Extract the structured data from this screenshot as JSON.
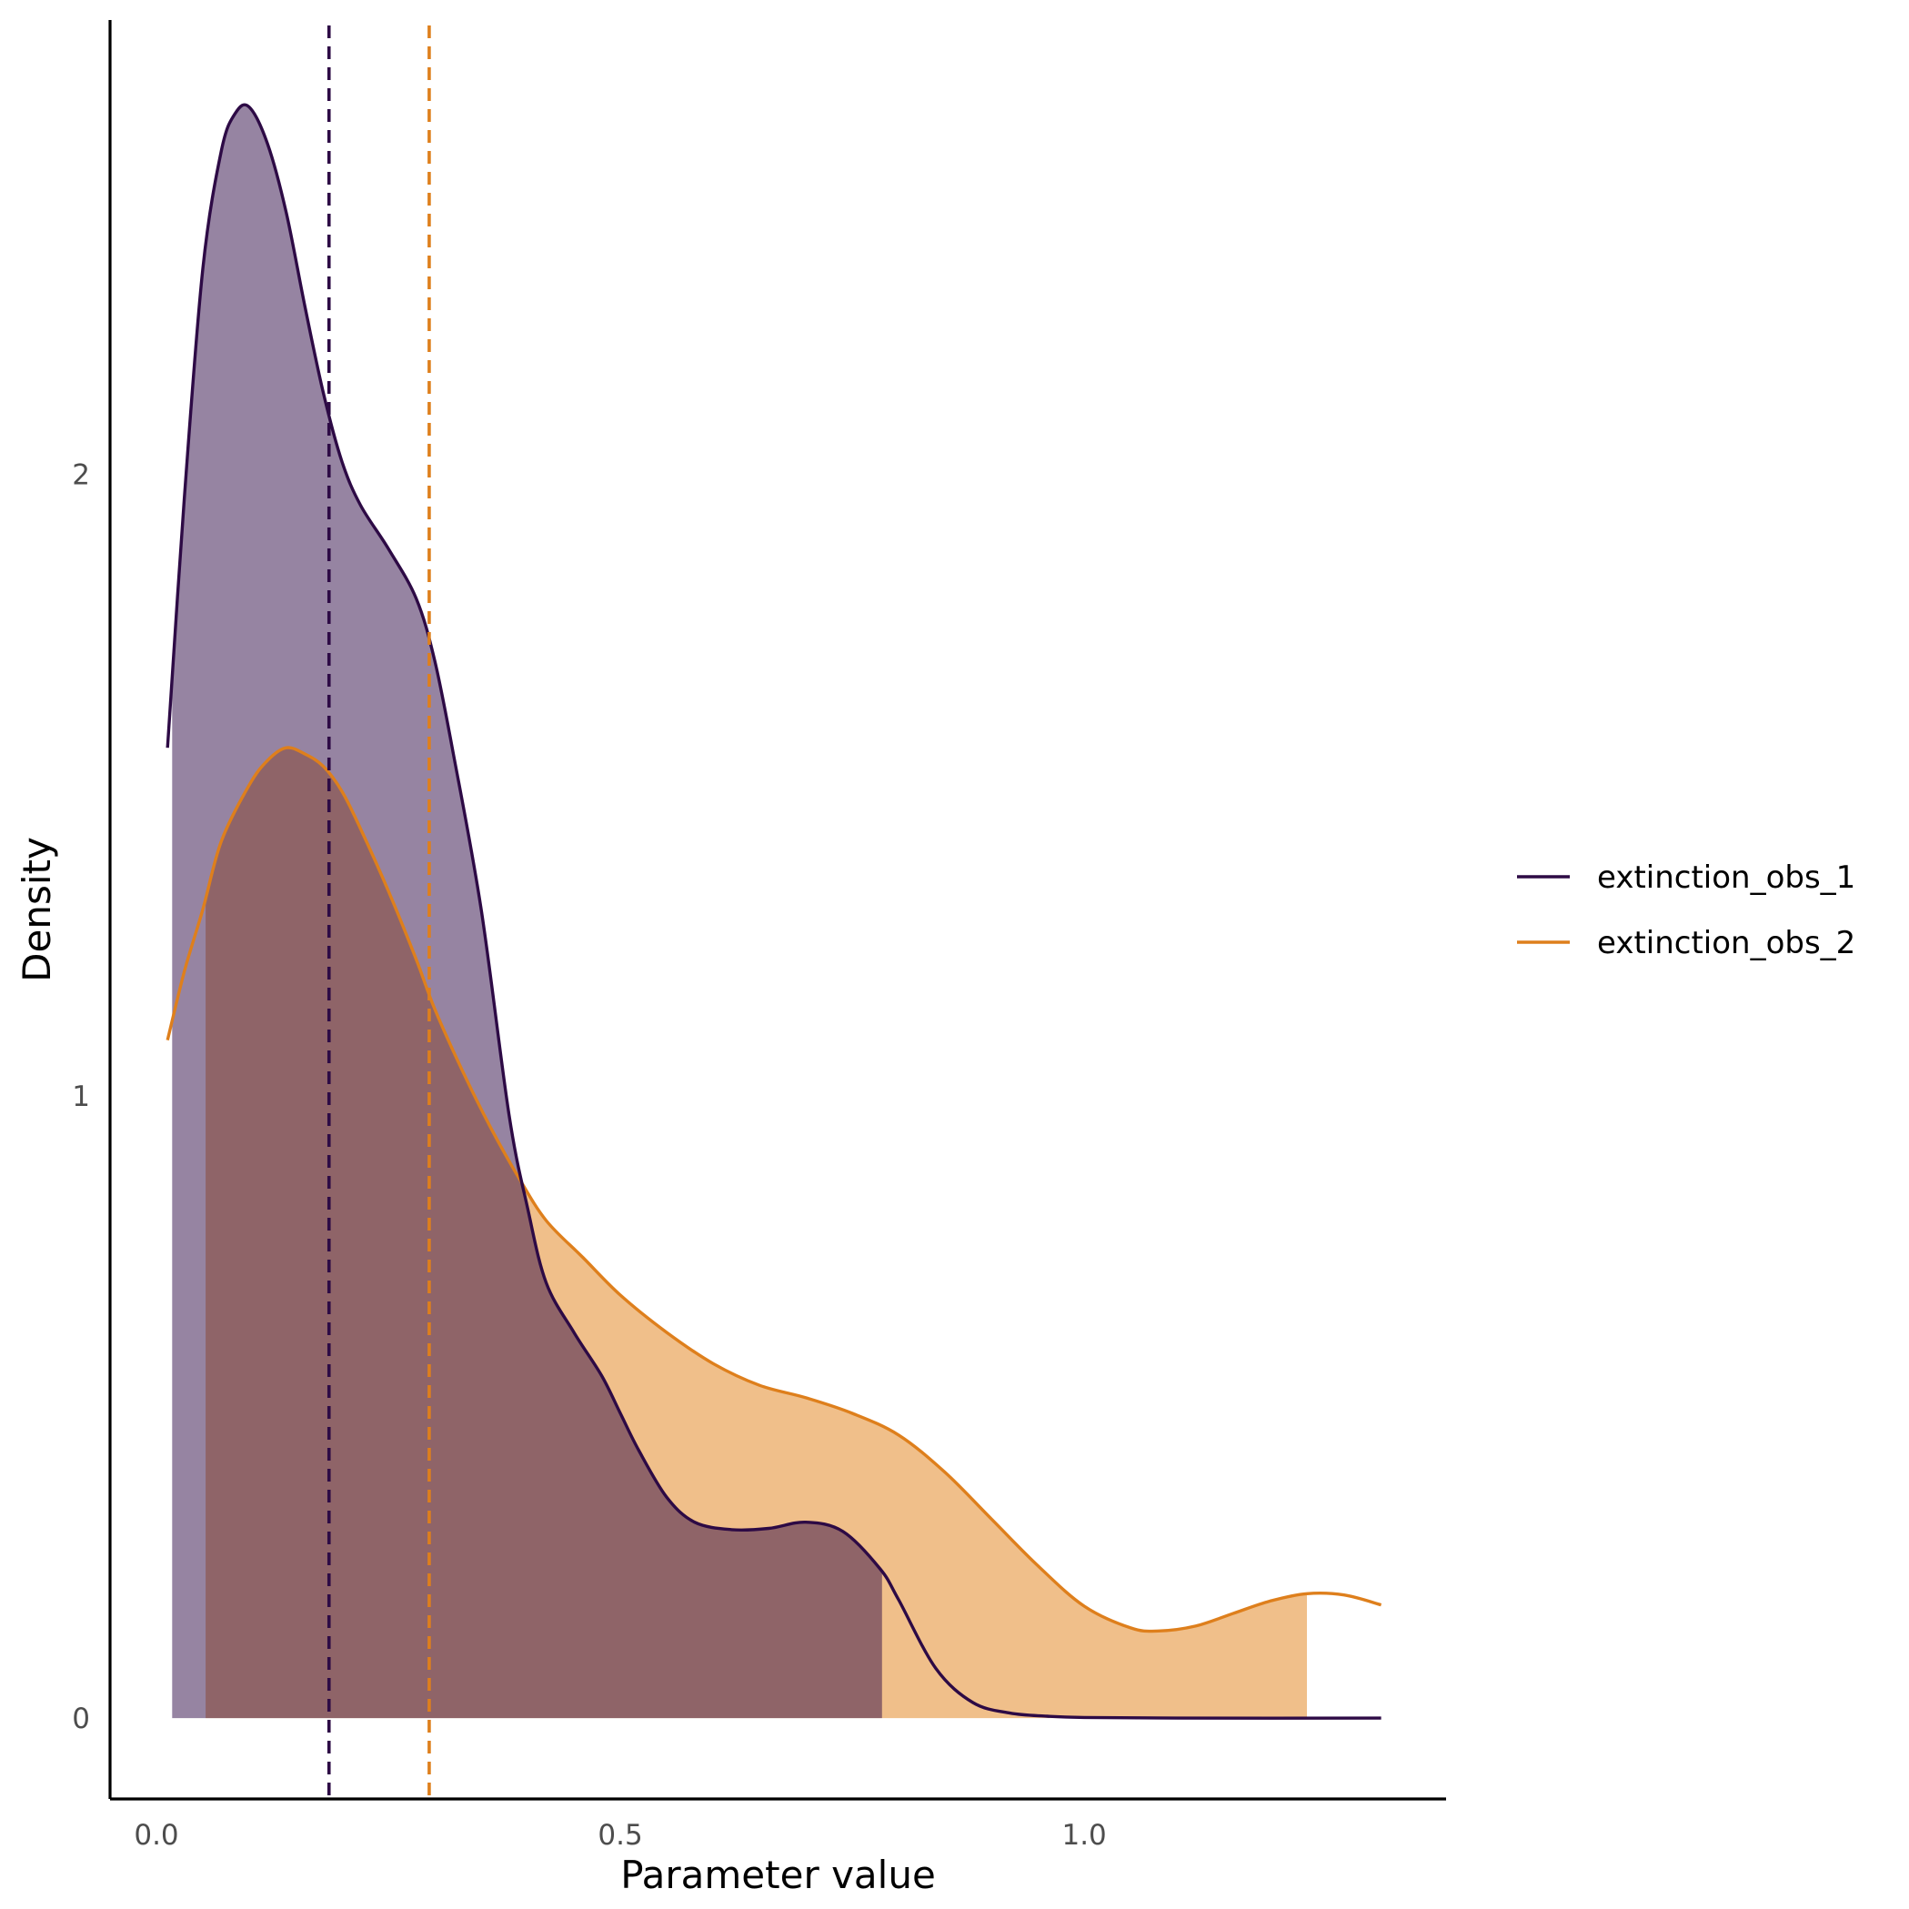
{
  "chart_data": {
    "type": "area",
    "xlabel": "Parameter value",
    "ylabel": "Density",
    "xlim": [
      -0.05,
      1.39
    ],
    "ylim": [
      -0.13,
      2.73
    ],
    "x_ticks": [
      0.0,
      0.5,
      1.0
    ],
    "x_tick_labels": [
      "0.0",
      "0.5",
      "1.0"
    ],
    "y_ticks": [
      0,
      1,
      2
    ],
    "y_tick_labels": [
      "0",
      "1",
      "2"
    ],
    "grid": false,
    "legend_position": "right",
    "series": [
      {
        "name": "extinction_obs_1",
        "color": "#2d0a45",
        "fill": "#957ea3",
        "fill_range": [
          0.017,
          0.782
        ],
        "reference_line": 0.186,
        "points": [
          [
            0.012,
            1.56
          ],
          [
            0.03,
            1.96
          ],
          [
            0.05,
            2.33
          ],
          [
            0.07,
            2.52
          ],
          [
            0.085,
            2.58
          ],
          [
            0.1,
            2.59
          ],
          [
            0.12,
            2.53
          ],
          [
            0.14,
            2.42
          ],
          [
            0.16,
            2.27
          ],
          [
            0.18,
            2.13
          ],
          [
            0.2,
            2.02
          ],
          [
            0.22,
            1.95
          ],
          [
            0.25,
            1.88
          ],
          [
            0.28,
            1.8
          ],
          [
            0.3,
            1.7
          ],
          [
            0.32,
            1.55
          ],
          [
            0.35,
            1.3
          ],
          [
            0.38,
            0.97
          ],
          [
            0.4,
            0.82
          ],
          [
            0.42,
            0.7
          ],
          [
            0.45,
            0.62
          ],
          [
            0.48,
            0.55
          ],
          [
            0.5,
            0.49
          ],
          [
            0.52,
            0.43
          ],
          [
            0.55,
            0.355
          ],
          [
            0.58,
            0.315
          ],
          [
            0.62,
            0.303
          ],
          [
            0.66,
            0.305
          ],
          [
            0.7,
            0.315
          ],
          [
            0.74,
            0.3
          ],
          [
            0.78,
            0.24
          ],
          [
            0.8,
            0.19
          ],
          [
            0.84,
            0.08
          ],
          [
            0.88,
            0.025
          ],
          [
            0.92,
            0.008
          ],
          [
            0.96,
            0.003
          ],
          [
            1.0,
            0.001
          ],
          [
            1.1,
            0.0
          ],
          [
            1.32,
            0.0
          ]
        ]
      },
      {
        "name": "extinction_obs_2",
        "color": "#de7f1c",
        "fill": "#f0bf8a",
        "fill_range": [
          0.053,
          1.24
        ],
        "reference_line": 0.294,
        "points": [
          [
            0.012,
            1.09
          ],
          [
            0.03,
            1.2
          ],
          [
            0.05,
            1.3
          ],
          [
            0.07,
            1.41
          ],
          [
            0.1,
            1.5
          ],
          [
            0.12,
            1.54
          ],
          [
            0.14,
            1.56
          ],
          [
            0.16,
            1.55
          ],
          [
            0.18,
            1.53
          ],
          [
            0.2,
            1.49
          ],
          [
            0.22,
            1.43
          ],
          [
            0.25,
            1.33
          ],
          [
            0.28,
            1.22
          ],
          [
            0.3,
            1.14
          ],
          [
            0.33,
            1.04
          ],
          [
            0.36,
            0.95
          ],
          [
            0.39,
            0.87
          ],
          [
            0.42,
            0.8
          ],
          [
            0.46,
            0.74
          ],
          [
            0.5,
            0.68
          ],
          [
            0.55,
            0.62
          ],
          [
            0.6,
            0.57
          ],
          [
            0.65,
            0.535
          ],
          [
            0.7,
            0.515
          ],
          [
            0.75,
            0.49
          ],
          [
            0.8,
            0.455
          ],
          [
            0.85,
            0.395
          ],
          [
            0.9,
            0.32
          ],
          [
            0.95,
            0.245
          ],
          [
            1.0,
            0.18
          ],
          [
            1.05,
            0.145
          ],
          [
            1.08,
            0.14
          ],
          [
            1.12,
            0.148
          ],
          [
            1.16,
            0.168
          ],
          [
            1.2,
            0.188
          ],
          [
            1.24,
            0.2
          ],
          [
            1.28,
            0.198
          ],
          [
            1.32,
            0.182
          ]
        ]
      }
    ]
  }
}
